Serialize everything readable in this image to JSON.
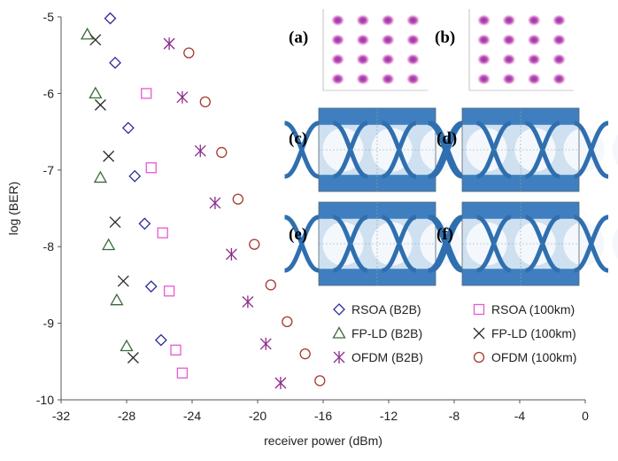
{
  "chart_data": {
    "type": "scatter",
    "title": "",
    "xlabel": "receiver power (dBm)",
    "ylabel": "log (BER)",
    "xlim": [
      -32,
      0
    ],
    "ylim": [
      -10,
      -5
    ],
    "xticks": [
      "-32",
      "-28",
      "-24",
      "-20",
      "-16",
      "-12",
      "-8",
      "-4",
      "0"
    ],
    "yticks": [
      "-5",
      "-6",
      "-7",
      "-8",
      "-9",
      "-10"
    ],
    "grid": false,
    "legend_position": "bottom-right",
    "series": [
      {
        "name": "RSOA (B2B)",
        "marker": "diamond",
        "color": "#2b2b9a",
        "points": [
          [
            -29.0,
            -5.02
          ],
          [
            -28.7,
            -5.6
          ],
          [
            -27.9,
            -6.45
          ],
          [
            -27.5,
            -7.08
          ],
          [
            -26.9,
            -7.7
          ],
          [
            -26.5,
            -8.52
          ],
          [
            -25.9,
            -9.22
          ]
        ]
      },
      {
        "name": "RSOA (100km)",
        "marker": "square",
        "color": "#e85ad0",
        "points": [
          [
            -26.8,
            -6.0
          ],
          [
            -26.5,
            -6.97
          ],
          [
            -25.8,
            -7.82
          ],
          [
            -25.4,
            -8.58
          ],
          [
            -25.0,
            -9.35
          ],
          [
            -24.6,
            -9.65
          ]
        ]
      },
      {
        "name": "FP-LD (B2B)",
        "marker": "triangle",
        "color": "#3a6a3a",
        "points": [
          [
            -30.4,
            -5.23
          ],
          [
            -29.9,
            -6.0
          ],
          [
            -29.6,
            -7.1
          ],
          [
            -29.1,
            -7.98
          ],
          [
            -28.6,
            -8.7
          ],
          [
            -28.0,
            -9.3
          ]
        ]
      },
      {
        "name": "FP-LD (100km)",
        "marker": "x",
        "color": "#2a2a2a",
        "points": [
          [
            -29.9,
            -5.3
          ],
          [
            -29.6,
            -6.15
          ],
          [
            -29.1,
            -6.82
          ],
          [
            -28.7,
            -7.68
          ],
          [
            -28.2,
            -8.45
          ],
          [
            -27.6,
            -9.45
          ]
        ]
      },
      {
        "name": "OFDM (B2B)",
        "marker": "asterisk",
        "color": "#8c2a8c",
        "points": [
          [
            -25.4,
            -5.35
          ],
          [
            -24.6,
            -6.05
          ],
          [
            -23.5,
            -6.75
          ],
          [
            -22.6,
            -7.43
          ],
          [
            -21.6,
            -8.1
          ],
          [
            -20.6,
            -8.72
          ],
          [
            -19.5,
            -9.27
          ],
          [
            -18.6,
            -9.78
          ]
        ]
      },
      {
        "name": "OFDM (100km)",
        "marker": "circle",
        "color": "#a33a2e",
        "points": [
          [
            -24.2,
            -5.47
          ],
          [
            -23.2,
            -6.11
          ],
          [
            -22.2,
            -6.77
          ],
          [
            -21.2,
            -7.38
          ],
          [
            -20.2,
            -7.97
          ],
          [
            -19.2,
            -8.5
          ],
          [
            -18.2,
            -8.98
          ],
          [
            -17.1,
            -9.4
          ],
          [
            -16.2,
            -9.75
          ]
        ]
      }
    ],
    "insets": [
      {
        "label": "(a)",
        "kind": "constellation"
      },
      {
        "label": "(b)",
        "kind": "constellation"
      },
      {
        "label": "(c)",
        "kind": "eye"
      },
      {
        "label": "(d)",
        "kind": "eye"
      },
      {
        "label": "(e)",
        "kind": "eye"
      },
      {
        "label": "(f)",
        "kind": "eye"
      }
    ]
  }
}
